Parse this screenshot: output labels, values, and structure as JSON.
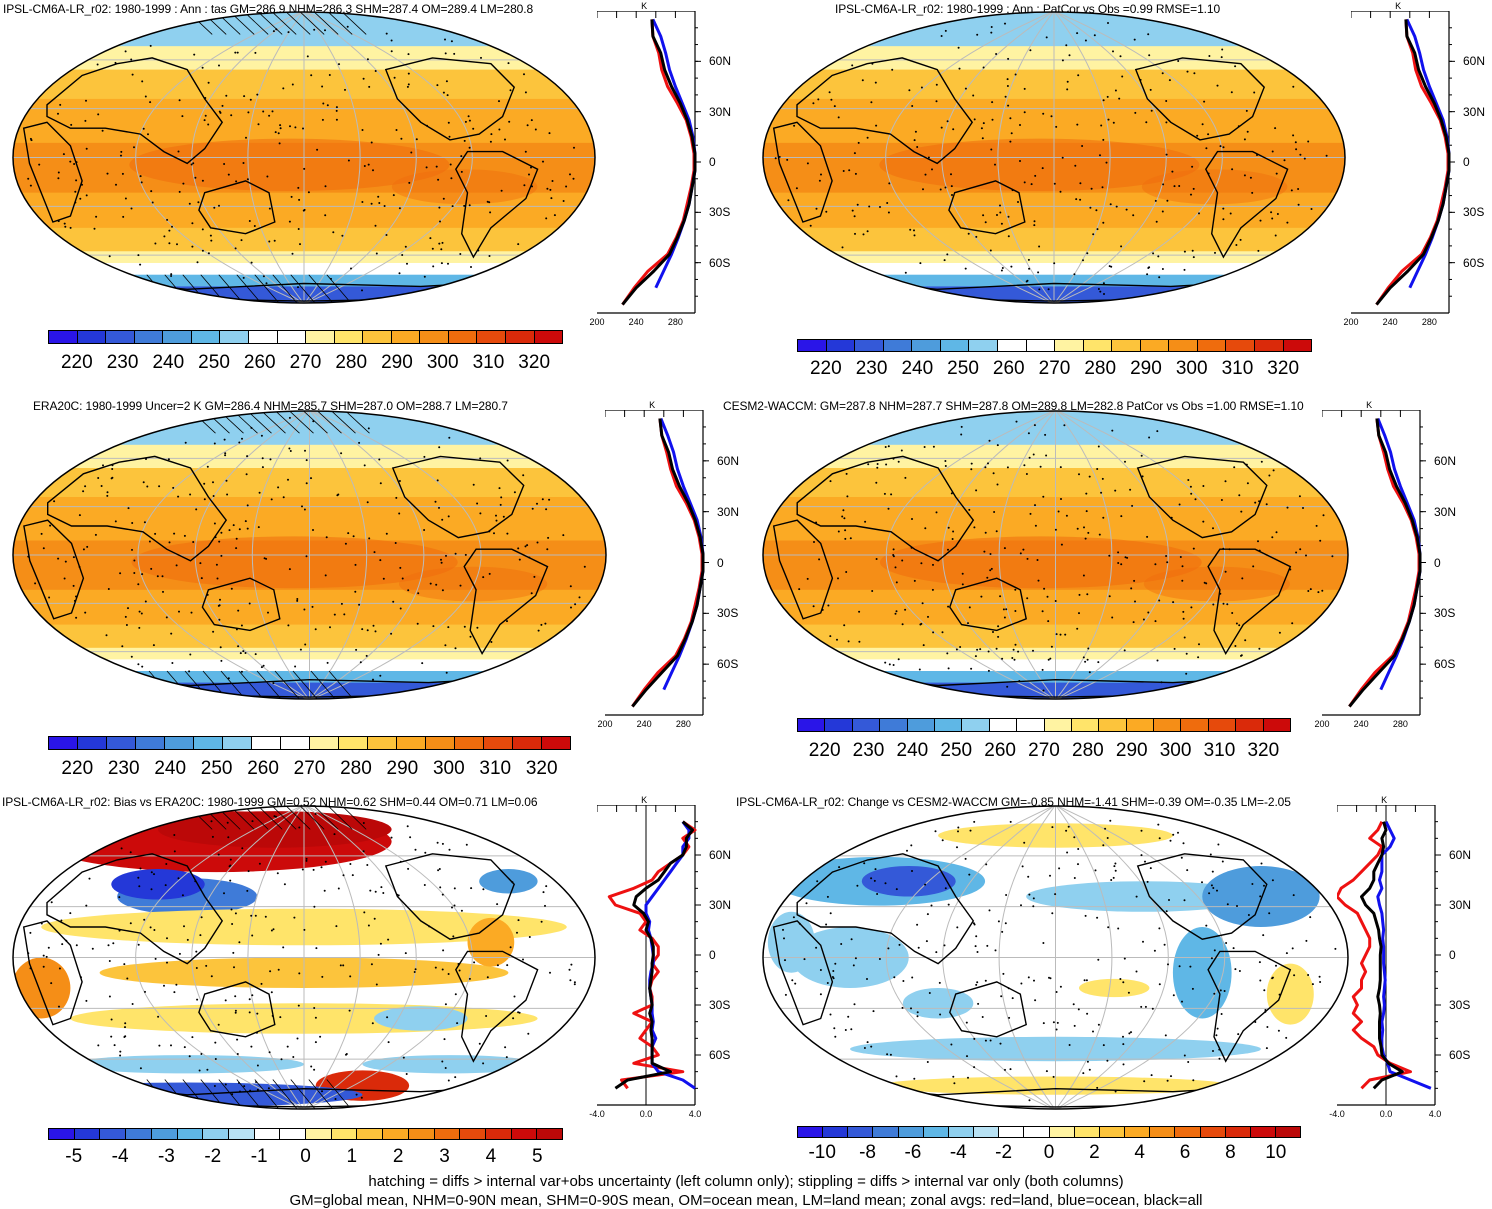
{
  "colors": {
    "ocean_fill": "#f9a51c",
    "ocean_deep": "#f07f12",
    "land_line": "#000000",
    "grid": "#bbbbbb",
    "zonal_land": "#ee1111",
    "zonal_ocean": "#1111ee",
    "zonal_all": "#000000",
    "abs_scale": [
      "#2a15e8",
      "#2438d8",
      "#3459d8",
      "#3f7bd8",
      "#4e9cdc",
      "#5fb7e6",
      "#8fd0ef",
      "#ffffff",
      "#ffffff",
      "#fff3a2",
      "#ffe46a",
      "#fcc43c",
      "#fbaa24",
      "#f58e17",
      "#ef6c0d",
      "#e64a0c",
      "#da2a0a",
      "#cc0a0a"
    ],
    "diff_scale": [
      "#2a15e8",
      "#2438d8",
      "#3459d8",
      "#3f7bd8",
      "#4e9cdc",
      "#5fb7e6",
      "#8fd0ef",
      "#b8e2f4",
      "#ffffff",
      "#ffffff",
      "#fff3a2",
      "#ffe46a",
      "#fcc43c",
      "#fbaa24",
      "#f58e17",
      "#ef6c0d",
      "#e64a0c",
      "#da2a0a",
      "#cc0a0a",
      "#bb0808"
    ]
  },
  "panels": [
    {
      "title": "IPSL-CM6A-LR_r02: 1980-1999 : Ann : tas GM=286.9 NHM=286.3 SHM=287.4 OM=289.4 LM=280.8",
      "kind": "abs"
    },
    {
      "title": "IPSL-CM6A-LR_r02: 1980-1999 : Ann : PatCor vs Obs =0.99 RMSE=1.10",
      "kind": "abs"
    },
    {
      "title": "ERA20C: 1980-1999 Uncer=2 K GM=286.4 NHM=285.7 SHM=287.0 OM=288.7 LM=280.7",
      "kind": "abs"
    },
    {
      "title": "CESM2-WACCM: GM=287.8 NHM=287.7 SHM=287.8 OM=289.8 LM=282.8 PatCor vs Obs =1.00 RMSE=1.10",
      "kind": "abs"
    },
    {
      "title": "IPSL-CM6A-LR_r02: Bias vs ERA20C: 1980-1999 GM=0.52 NHM=0.62 SHM=0.44 OM=0.71 LM=0.06",
      "kind": "bias"
    },
    {
      "title": "IPSL-CM6A-LR_r02: Change vs CESM2-WACCM GM=-0.85 NHM=-1.41 SHM=-0.39 OM=-0.35 LM=-2.05",
      "kind": "change"
    }
  ],
  "zonal_axis": {
    "unit": "K",
    "lat_labels": [
      "60N",
      "30N",
      "0",
      "30S",
      "60S"
    ],
    "abs_x_ticks": [
      "200",
      "240",
      "280"
    ],
    "diff_x_ticks": [
      "-4.0",
      "0.0",
      "4.0"
    ]
  },
  "colorbars": {
    "abs": [
      "220",
      "230",
      "240",
      "250",
      "260",
      "270",
      "280",
      "290",
      "300",
      "310",
      "320"
    ],
    "bias": [
      "-5",
      "-4",
      "-3",
      "-2",
      "-1",
      "0",
      "1",
      "2",
      "3",
      "4",
      "5"
    ],
    "change": [
      "-10",
      "-8",
      "-6",
      "-4",
      "-2",
      "0",
      "2",
      "4",
      "6",
      "8",
      "10"
    ]
  },
  "footnote": {
    "line1": "hatching = diffs > internal var+obs uncertainty (left column only); stippling = diffs > internal var only (both columns)",
    "line2": "GM=global mean, NHM=0-90N mean, SHM=0-90S mean, OM=ocean mean, LM=land mean; zonal avgs: red=land, blue=ocean, black=all"
  },
  "chart_data": [
    {
      "type": "line",
      "title": "IPSL-CM6A-LR_r02: 1980-1999 : Ann : tas GM=286.9 NHM=286.3 SHM=287.4 OM=289.4 LM=280.8",
      "xlabel": "K",
      "ylabel": "",
      "xlim": [
        200,
        300
      ],
      "ylim": [
        -90,
        90
      ],
      "colorbar_range": [
        220,
        320
      ],
      "y": [
        -85,
        -75,
        -65,
        -55,
        -45,
        -35,
        -25,
        -15,
        -5,
        5,
        15,
        25,
        35,
        45,
        55,
        65,
        75,
        85
      ],
      "series": [
        {
          "color": "red",
          "x": [
            226,
            238,
            252,
            272,
            281,
            288,
            292,
            296,
            299,
            299,
            296,
            291,
            282,
            272,
            266,
            263,
            257,
            256
          ]
        },
        {
          "color": "blue",
          "x": [
            null,
            260,
            268,
            276,
            283,
            289,
            294,
            297,
            300,
            300,
            298,
            294,
            287,
            280,
            274,
            270,
            265,
            257
          ]
        },
        {
          "color": "black",
          "x": [
            226,
            240,
            258,
            274,
            282,
            289,
            294,
            297,
            300,
            300,
            297,
            292,
            285,
            276,
            269,
            265,
            257,
            256
          ]
        }
      ]
    },
    {
      "type": "line",
      "title": "IPSL-CM6A-LR_r02: 1980-1999 : Ann : PatCor vs Obs =0.99 RMSE=1.10",
      "xlabel": "",
      "ylabel": "",
      "xlim": [
        200,
        300
      ],
      "ylim": [
        -90,
        90
      ],
      "colorbar_range": [
        220,
        320
      ],
      "y": [
        -85,
        -75,
        -65,
        -55,
        -45,
        -35,
        -25,
        -15,
        -5,
        5,
        15,
        25,
        35,
        45,
        55,
        65,
        75,
        85
      ],
      "series": [
        {
          "color": "red",
          "x": [
            226,
            238,
            252,
            272,
            281,
            288,
            292,
            296,
            299,
            299,
            296,
            291,
            282,
            272,
            266,
            263,
            257,
            256
          ]
        },
        {
          "color": "blue",
          "x": [
            null,
            260,
            268,
            276,
            283,
            289,
            294,
            297,
            300,
            300,
            298,
            294,
            287,
            280,
            274,
            270,
            265,
            257
          ]
        },
        {
          "color": "black",
          "x": [
            226,
            240,
            258,
            274,
            282,
            289,
            294,
            297,
            300,
            300,
            297,
            292,
            285,
            276,
            269,
            265,
            257,
            256
          ]
        }
      ]
    },
    {
      "type": "line",
      "title": "ERA20C: 1980-1999 Uncer=2 K GM=286.4 NHM=285.7 SHM=287.0 OM=288.7 LM=280.7",
      "xlabel": "",
      "ylabel": "",
      "xlim": [
        200,
        300
      ],
      "ylim": [
        -90,
        90
      ],
      "colorbar_range": [
        220,
        320
      ],
      "y": [
        -85,
        -75,
        -65,
        -55,
        -45,
        -35,
        -25,
        -15,
        -5,
        5,
        15,
        25,
        35,
        45,
        55,
        65,
        75,
        85
      ],
      "series": [
        {
          "color": "red",
          "x": [
            228,
            240,
            254,
            272,
            281,
            288,
            292,
            296,
            299,
            299,
            296,
            291,
            283,
            273,
            267,
            263,
            258,
            256
          ]
        },
        {
          "color": "blue",
          "x": [
            null,
            260,
            268,
            276,
            283,
            289,
            294,
            297,
            300,
            300,
            298,
            294,
            287,
            280,
            274,
            270,
            264,
            257
          ]
        },
        {
          "color": "black",
          "x": [
            228,
            242,
            258,
            274,
            282,
            289,
            294,
            297,
            300,
            300,
            297,
            292,
            285,
            276,
            269,
            265,
            258,
            256
          ]
        }
      ]
    },
    {
      "type": "line",
      "title": "CESM2-WACCM: GM=287.8 NHM=287.7 SHM=287.8 OM=289.8 LM=282.8 PatCor vs Obs =1.00 RMSE=1.10",
      "xlabel": "",
      "ylabel": "",
      "xlim": [
        200,
        300
      ],
      "ylim": [
        -90,
        90
      ],
      "colorbar_range": [
        220,
        320
      ],
      "y": [
        -85,
        -75,
        -65,
        -55,
        -45,
        -35,
        -25,
        -15,
        -5,
        5,
        15,
        25,
        35,
        45,
        55,
        65,
        75,
        85
      ],
      "series": [
        {
          "color": "red",
          "x": [
            228,
            240,
            254,
            272,
            281,
            288,
            292,
            296,
            299,
            299,
            296,
            291,
            283,
            273,
            267,
            263,
            258,
            256
          ]
        },
        {
          "color": "blue",
          "x": [
            null,
            260,
            268,
            276,
            283,
            289,
            294,
            297,
            300,
            300,
            298,
            294,
            287,
            280,
            274,
            270,
            264,
            257
          ]
        },
        {
          "color": "black",
          "x": [
            228,
            242,
            258,
            274,
            282,
            289,
            294,
            297,
            300,
            300,
            297,
            292,
            285,
            276,
            269,
            265,
            258,
            256
          ]
        }
      ]
    },
    {
      "type": "line",
      "title": "IPSL-CM6A-LR_r02: Bias vs ERA20C: 1980-1999 GM=0.52 NHM=0.62 SHM=0.44 OM=0.71 LM=0.06",
      "xlabel": "",
      "ylabel": "",
      "xlim": [
        -4,
        4
      ],
      "ylim": [
        -90,
        90
      ],
      "colorbar_range": [
        -5,
        5
      ],
      "y": [
        -80,
        -75,
        -70,
        -65,
        -60,
        -55,
        -50,
        -45,
        -40,
        -35,
        -30,
        -25,
        -20,
        -15,
        -10,
        -5,
        0,
        5,
        10,
        15,
        20,
        25,
        30,
        35,
        40,
        45,
        50,
        55,
        60,
        65,
        70,
        75,
        80
      ],
      "series": [
        {
          "color": "red",
          "x": [
            -1.5,
            -2.0,
            3.0,
            -1.0,
            1.0,
            0.5,
            -0.5,
            0.0,
            0.5,
            -1.0,
            0.5,
            0.5,
            0.3,
            0.5,
            1.0,
            0.5,
            1.0,
            1.0,
            0.5,
            -0.5,
            0.0,
            -0.5,
            -2.5,
            -3.0,
            -1.0,
            0.5,
            1.0,
            2.0,
            3.0,
            3.5,
            3.0,
            4.0,
            3.0
          ]
        },
        {
          "color": "blue",
          "x": [
            4.0,
            3.0,
            1.0,
            0.5,
            0.5,
            0.5,
            0.8,
            0.5,
            0.6,
            0.5,
            0.5,
            0.4,
            0.3,
            0.3,
            0.4,
            0.6,
            0.6,
            0.5,
            0.4,
            0.2,
            0.3,
            0.0,
            0.0,
            0.5,
            1.0,
            1.5,
            2.0,
            2.5,
            3.0,
            3.0,
            3.5,
            3.5,
            3.0
          ]
        },
        {
          "color": "black",
          "x": [
            -2.5,
            -1.5,
            2.0,
            0.5,
            0.5,
            0.5,
            0.5,
            0.4,
            0.5,
            0.3,
            0.5,
            0.4,
            0.3,
            0.4,
            0.5,
            0.5,
            0.6,
            0.6,
            0.4,
            0.0,
            0.2,
            -0.2,
            -1.0,
            -0.8,
            0.0,
            1.0,
            1.5,
            2.0,
            3.0,
            3.3,
            3.3,
            3.8,
            3.0
          ]
        }
      ]
    },
    {
      "type": "line",
      "title": "IPSL-CM6A-LR_r02: Change vs CESM2-WACCM GM=-0.85 NHM=-1.41 SHM=-0.39 OM=-0.35 LM=-2.05",
      "xlabel": "",
      "ylabel": "",
      "xlim": [
        -6,
        6
      ],
      "ylim": [
        -90,
        90
      ],
      "colorbar_range": [
        -10,
        10
      ],
      "y": [
        -80,
        -75,
        -70,
        -65,
        -60,
        -55,
        -50,
        -45,
        -40,
        -35,
        -30,
        -25,
        -20,
        -15,
        -10,
        -5,
        0,
        5,
        10,
        15,
        20,
        25,
        30,
        35,
        40,
        45,
        50,
        55,
        60,
        65,
        70,
        75,
        80
      ],
      "series": [
        {
          "color": "red",
          "x": [
            -3.0,
            -2.0,
            3.0,
            0.5,
            -1.0,
            -1.5,
            -3.0,
            -4.0,
            -3.0,
            -4.0,
            -3.5,
            -4.0,
            -3.0,
            -3.0,
            -2.5,
            -3.0,
            -2.5,
            -2.0,
            -2.0,
            -2.5,
            -3.0,
            -3.5,
            -5.0,
            -6.0,
            -5.5,
            -4.0,
            -3.0,
            -2.0,
            -1.0,
            -0.5,
            -2.0,
            -1.0,
            -0.5
          ]
        },
        {
          "color": "blue",
          "x": [
            5.5,
            3.0,
            0.5,
            0.2,
            -0.3,
            -0.5,
            -0.5,
            -0.4,
            -0.5,
            -0.3,
            -0.2,
            -0.3,
            -0.2,
            -0.1,
            -0.2,
            -0.3,
            -0.3,
            -0.3,
            -0.4,
            -0.3,
            -0.4,
            -0.5,
            -0.8,
            -1.0,
            -0.5,
            -0.8,
            -0.5,
            -0.5,
            -0.5,
            0.5,
            1.0,
            0.5,
            0.0
          ]
        },
        {
          "color": "black",
          "x": [
            -1.5,
            -0.5,
            2.0,
            0.3,
            -0.5,
            -0.6,
            -0.8,
            -0.8,
            -0.8,
            -0.7,
            -0.8,
            -1.0,
            -0.8,
            -0.7,
            -0.7,
            -0.7,
            -0.7,
            -0.6,
            -0.8,
            -0.9,
            -1.2,
            -1.5,
            -2.5,
            -3.0,
            -2.0,
            -1.5,
            -1.5,
            -1.0,
            -0.5,
            -0.3,
            -0.5,
            0.0,
            -0.3
          ]
        }
      ]
    }
  ]
}
